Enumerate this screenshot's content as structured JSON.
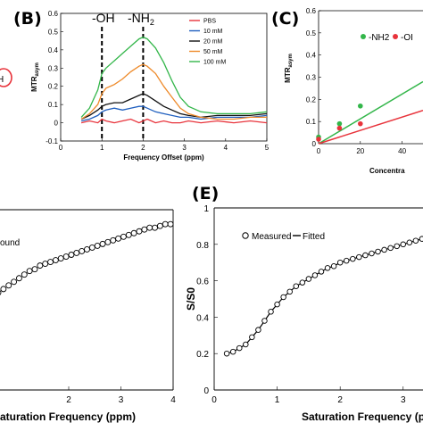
{
  "colors": {
    "pbs": "#e8333b",
    "c10": "#1f5fbf",
    "c20": "#111111",
    "c50": "#ee8a2a",
    "c100": "#33b64a",
    "nh2": "#33b64a",
    "oh": "#e8333b"
  },
  "panel_a": {
    "partial_text": "H"
  },
  "panel_b": {
    "label": "(B)",
    "peak_oh": "-OH",
    "peak_nh2": "-NH",
    "peak_nh2_sub": "2"
  },
  "panel_c": {
    "label": "(C)"
  },
  "panel_d": {
    "legend_partial": "ound"
  },
  "panel_e": {
    "label": "(E)"
  },
  "chart_data": [
    {
      "type": "line",
      "panel": "B",
      "xlabel": "Frequency Offset (ppm)",
      "ylabel_main": "MTR",
      "ylabel_sub": "asym",
      "xlim": [
        0,
        5
      ],
      "ylim": [
        -0.1,
        0.6
      ],
      "xticks": [
        "0",
        "1",
        "2",
        "3",
        "4",
        "5"
      ],
      "yticks": [
        "-0.1",
        "0",
        "0.1",
        "0.2",
        "0.3",
        "0.4",
        "0.5",
        "0.6"
      ],
      "peak_lines_x": [
        1,
        2
      ],
      "x": [
        0.5,
        0.7,
        0.9,
        1.0,
        1.1,
        1.3,
        1.5,
        1.7,
        1.9,
        2.0,
        2.1,
        2.3,
        2.5,
        2.7,
        2.9,
        3.1,
        3.4,
        3.8,
        4.2,
        4.6,
        5.0
      ],
      "legend": [
        "PBS",
        "10 mM",
        "20 mM",
        "50 mM",
        "100 mM"
      ],
      "series": [
        {
          "name": "PBS",
          "color_key": "pbs",
          "values": [
            0.0,
            0.01,
            0.0,
            0.02,
            0.01,
            0.0,
            0.01,
            0.02,
            0.0,
            0.01,
            0.02,
            0.0,
            0.01,
            0.0,
            0.0,
            0.01,
            0.0,
            0.01,
            0.0,
            0.01,
            0.0
          ]
        },
        {
          "name": "10 mM",
          "color_key": "c10",
          "values": [
            0.01,
            0.02,
            0.04,
            0.06,
            0.07,
            0.08,
            0.07,
            0.08,
            0.09,
            0.09,
            0.08,
            0.06,
            0.05,
            0.04,
            0.03,
            0.03,
            0.02,
            0.03,
            0.03,
            0.03,
            0.04
          ]
        },
        {
          "name": "20 mM",
          "color_key": "c20",
          "values": [
            0.02,
            0.04,
            0.07,
            0.09,
            0.1,
            0.11,
            0.11,
            0.13,
            0.15,
            0.16,
            0.15,
            0.12,
            0.09,
            0.07,
            0.05,
            0.04,
            0.03,
            0.04,
            0.04,
            0.04,
            0.05
          ]
        },
        {
          "name": "50 mM",
          "color_key": "c50",
          "values": [
            0.02,
            0.05,
            0.1,
            0.16,
            0.19,
            0.21,
            0.24,
            0.28,
            0.31,
            0.32,
            0.31,
            0.27,
            0.2,
            0.14,
            0.08,
            0.05,
            0.03,
            0.02,
            0.02,
            0.03,
            0.03
          ]
        },
        {
          "name": "100 mM",
          "color_key": "c100",
          "values": [
            0.03,
            0.08,
            0.18,
            0.27,
            0.3,
            0.34,
            0.38,
            0.42,
            0.46,
            0.47,
            0.46,
            0.41,
            0.33,
            0.23,
            0.14,
            0.09,
            0.06,
            0.05,
            0.05,
            0.05,
            0.06
          ]
        }
      ]
    },
    {
      "type": "scatter",
      "panel": "C",
      "xlabel": "Concentra",
      "ylabel_main": "MTR",
      "ylabel_sub": "asym",
      "xlim": [
        0,
        50
      ],
      "ylim": [
        0,
        0.6
      ],
      "xticks": [
        "0",
        "20",
        "40"
      ],
      "yticks": [
        "0",
        "0.1",
        "0.2",
        "0.3",
        "0.4",
        "0.5",
        "0.6"
      ],
      "legend": [
        "-NH2",
        "-OI"
      ],
      "series": [
        {
          "name": "-NH2",
          "color_key": "nh2",
          "x": [
            0,
            10,
            20
          ],
          "y": [
            0.03,
            0.09,
            0.17
          ],
          "fit": [
            [
              0,
              0.0
            ],
            [
              50,
              0.28
            ]
          ]
        },
        {
          "name": "-OI",
          "color_key": "oh",
          "x": [
            0,
            10,
            20
          ],
          "y": [
            0.02,
            0.07,
            0.09
          ],
          "fit": [
            [
              0,
              0.0
            ],
            [
              50,
              0.15
            ]
          ]
        }
      ]
    },
    {
      "type": "scatter",
      "panel": "D",
      "xlabel": "aturation Frequency (ppm)",
      "xlim": [
        0,
        4
      ],
      "ylim": [
        0,
        1
      ],
      "xticks": [
        "2",
        "3",
        "4"
      ],
      "x": [
        0.15,
        0.25,
        0.35,
        0.45,
        0.55,
        0.65,
        0.75,
        0.85,
        0.95,
        1.05,
        1.15,
        1.25,
        1.35,
        1.45,
        1.55,
        1.65,
        1.75,
        1.85,
        1.95,
        2.05,
        2.15,
        2.25,
        2.35,
        2.45,
        2.55,
        2.65,
        2.75,
        2.85,
        2.95,
        3.05,
        3.15,
        3.25,
        3.35,
        3.45,
        3.55,
        3.65,
        3.75,
        3.85,
        3.95
      ],
      "y": [
        0.43,
        0.45,
        0.47,
        0.5,
        0.52,
        0.54,
        0.56,
        0.58,
        0.6,
        0.62,
        0.64,
        0.66,
        0.67,
        0.69,
        0.7,
        0.71,
        0.72,
        0.73,
        0.74,
        0.75,
        0.76,
        0.77,
        0.78,
        0.79,
        0.8,
        0.81,
        0.82,
        0.83,
        0.84,
        0.85,
        0.86,
        0.87,
        0.88,
        0.89,
        0.9,
        0.9,
        0.91,
        0.92,
        0.92
      ],
      "fit_from_x": 3.0
    },
    {
      "type": "line",
      "panel": "E",
      "xlabel": "Saturation Frequency (ppm)",
      "ylabel": "S/S0",
      "xlim": [
        0,
        3.4
      ],
      "ylim": [
        0,
        1
      ],
      "xticks": [
        "0",
        "1",
        "2",
        "3"
      ],
      "yticks": [
        "0",
        "0.2",
        "0.4",
        "0.6",
        "0.8",
        "1"
      ],
      "legend": [
        "Measured",
        "Fitted"
      ],
      "x": [
        0.2,
        0.3,
        0.4,
        0.5,
        0.6,
        0.7,
        0.8,
        0.9,
        1.0,
        1.1,
        1.2,
        1.3,
        1.4,
        1.5,
        1.6,
        1.7,
        1.8,
        1.9,
        2.0,
        2.1,
        2.2,
        2.3,
        2.4,
        2.5,
        2.6,
        2.7,
        2.8,
        2.9,
        3.0,
        3.1,
        3.2,
        3.3,
        3.4
      ],
      "y": [
        0.2,
        0.21,
        0.23,
        0.25,
        0.29,
        0.33,
        0.38,
        0.43,
        0.47,
        0.51,
        0.54,
        0.57,
        0.59,
        0.61,
        0.63,
        0.65,
        0.67,
        0.68,
        0.7,
        0.71,
        0.72,
        0.73,
        0.74,
        0.75,
        0.76,
        0.77,
        0.78,
        0.79,
        0.8,
        0.81,
        0.82,
        0.83,
        0.85
      ]
    }
  ]
}
